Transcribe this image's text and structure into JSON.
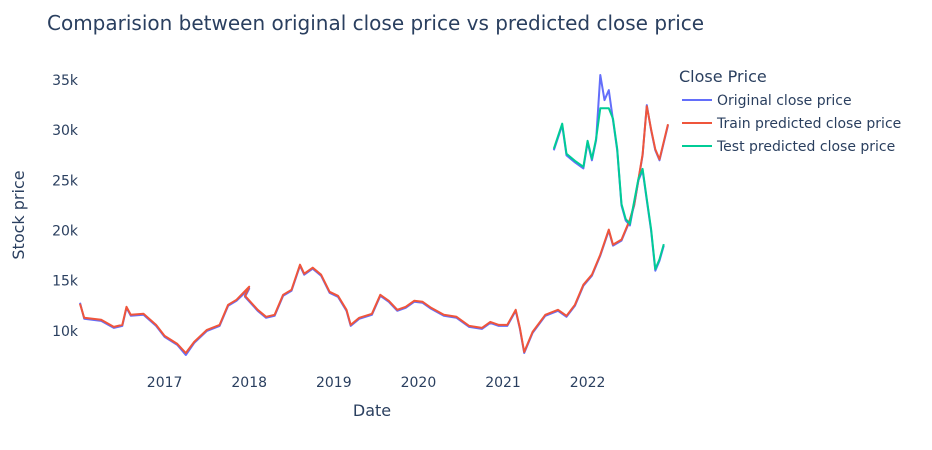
{
  "chart_data": {
    "type": "line",
    "title": "Comparision between original close price vs predicted close price",
    "xlabel": "Date",
    "ylabel": "Stock price",
    "x_range": [
      2016.0,
      2022.95
    ],
    "x_tick_labels": [
      "2017",
      "2018",
      "2019",
      "2020",
      "2021",
      "2022"
    ],
    "ylim": [
      6500,
      37000
    ],
    "y_tick_labels": [
      "10k",
      "15k",
      "20k",
      "25k",
      "30k",
      "35k"
    ],
    "y_tick_values": [
      10000,
      15000,
      20000,
      25000,
      30000,
      35000
    ],
    "grid": false,
    "legend": {
      "title": "Close Price",
      "placement": "top-right"
    },
    "series": [
      {
        "name": "Original close price",
        "color": "#636efa",
        "points": [
          [
            2016.0,
            12800
          ],
          [
            2016.05,
            11200
          ],
          [
            2016.25,
            11000
          ],
          [
            2016.4,
            10300
          ],
          [
            2016.5,
            10500
          ],
          [
            2016.55,
            12300
          ],
          [
            2016.6,
            11500
          ],
          [
            2016.75,
            11600
          ],
          [
            2016.9,
            10500
          ],
          [
            2017.0,
            9400
          ],
          [
            2017.15,
            8600
          ],
          [
            2017.25,
            7600
          ],
          [
            2017.35,
            8800
          ],
          [
            2017.5,
            10000
          ],
          [
            2017.65,
            10500
          ],
          [
            2017.75,
            12500
          ],
          [
            2017.85,
            13000
          ],
          [
            2018.0,
            14200
          ],
          [
            2017.95,
            13400
          ],
          [
            2018.1,
            12000
          ],
          [
            2018.2,
            11300
          ],
          [
            2018.3,
            11500
          ],
          [
            2018.4,
            13500
          ],
          [
            2018.5,
            14000
          ],
          [
            2018.6,
            16500
          ],
          [
            2018.65,
            15600
          ],
          [
            2018.75,
            16200
          ],
          [
            2018.85,
            15500
          ],
          [
            2018.95,
            13800
          ],
          [
            2019.05,
            13400
          ],
          [
            2019.15,
            12000
          ],
          [
            2019.2,
            10500
          ],
          [
            2019.3,
            11200
          ],
          [
            2019.45,
            11600
          ],
          [
            2019.55,
            13500
          ],
          [
            2019.65,
            12900
          ],
          [
            2019.75,
            12000
          ],
          [
            2019.85,
            12300
          ],
          [
            2019.95,
            12900
          ],
          [
            2020.05,
            12800
          ],
          [
            2020.15,
            12200
          ],
          [
            2020.3,
            11500
          ],
          [
            2020.45,
            11300
          ],
          [
            2020.6,
            10400
          ],
          [
            2020.75,
            10200
          ],
          [
            2020.85,
            10800
          ],
          [
            2020.95,
            10500
          ],
          [
            2021.05,
            10500
          ],
          [
            2021.15,
            12000
          ],
          [
            2021.2,
            10200
          ],
          [
            2021.25,
            7800
          ],
          [
            2021.35,
            9800
          ],
          [
            2021.5,
            11500
          ],
          [
            2021.65,
            12000
          ],
          [
            2021.75,
            11400
          ],
          [
            2021.85,
            12500
          ],
          [
            2021.95,
            14500
          ],
          [
            2022.05,
            15500
          ],
          [
            2022.15,
            17500
          ],
          [
            2022.25,
            20000
          ],
          [
            2022.3,
            18500
          ],
          [
            2022.4,
            19000
          ],
          [
            2022.5,
            21000
          ],
          [
            2022.55,
            22500
          ],
          [
            2022.6,
            25000
          ],
          [
            2022.65,
            27500
          ],
          [
            2022.7,
            32500
          ],
          [
            2022.75,
            30000
          ],
          [
            2022.8,
            28000
          ],
          [
            2022.85,
            27000
          ],
          [
            2022.95,
            30500
          ]
        ],
        "note_values": [
          [
            2021.6,
            28000
          ],
          [
            2021.7,
            30500
          ],
          [
            2021.75,
            27500
          ],
          [
            2021.85,
            26800
          ],
          [
            2021.95,
            26200
          ],
          [
            2022.0,
            28800
          ],
          [
            2022.05,
            27000
          ],
          [
            2022.1,
            29000
          ],
          [
            2022.15,
            35500
          ],
          [
            2022.2,
            33000
          ],
          [
            2022.25,
            34000
          ],
          [
            2022.3,
            31000
          ],
          [
            2022.35,
            28000
          ],
          [
            2022.4,
            22500
          ],
          [
            2022.45,
            21000
          ],
          [
            2022.5,
            20500
          ],
          [
            2022.6,
            25000
          ],
          [
            2022.65,
            26000
          ],
          [
            2022.7,
            23000
          ],
          [
            2022.75,
            20000
          ],
          [
            2022.8,
            16000
          ],
          [
            2022.85,
            17000
          ],
          [
            2022.9,
            18500
          ]
        ]
      },
      {
        "name": "Train predicted close price",
        "color": "#ef553b",
        "points": [
          [
            2016.0,
            12700
          ],
          [
            2016.05,
            11300
          ],
          [
            2016.25,
            11100
          ],
          [
            2016.4,
            10400
          ],
          [
            2016.5,
            10600
          ],
          [
            2016.55,
            12400
          ],
          [
            2016.6,
            11600
          ],
          [
            2016.75,
            11700
          ],
          [
            2016.9,
            10600
          ],
          [
            2017.0,
            9500
          ],
          [
            2017.15,
            8700
          ],
          [
            2017.25,
            7800
          ],
          [
            2017.35,
            8900
          ],
          [
            2017.5,
            10100
          ],
          [
            2017.65,
            10600
          ],
          [
            2017.75,
            12600
          ],
          [
            2017.85,
            13100
          ],
          [
            2018.0,
            14400
          ],
          [
            2017.95,
            13500
          ],
          [
            2018.1,
            12100
          ],
          [
            2018.2,
            11400
          ],
          [
            2018.3,
            11600
          ],
          [
            2018.4,
            13600
          ],
          [
            2018.5,
            14100
          ],
          [
            2018.6,
            16600
          ],
          [
            2018.65,
            15700
          ],
          [
            2018.75,
            16300
          ],
          [
            2018.85,
            15600
          ],
          [
            2018.95,
            13900
          ],
          [
            2019.05,
            13500
          ],
          [
            2019.15,
            12100
          ],
          [
            2019.2,
            10600
          ],
          [
            2019.3,
            11300
          ],
          [
            2019.45,
            11700
          ],
          [
            2019.55,
            13600
          ],
          [
            2019.65,
            13000
          ],
          [
            2019.75,
            12100
          ],
          [
            2019.85,
            12400
          ],
          [
            2019.95,
            13000
          ],
          [
            2020.05,
            12900
          ],
          [
            2020.15,
            12300
          ],
          [
            2020.3,
            11600
          ],
          [
            2020.45,
            11400
          ],
          [
            2020.6,
            10500
          ],
          [
            2020.75,
            10300
          ],
          [
            2020.85,
            10900
          ],
          [
            2020.95,
            10600
          ],
          [
            2021.05,
            10600
          ],
          [
            2021.15,
            12100
          ],
          [
            2021.2,
            10300
          ],
          [
            2021.25,
            7900
          ],
          [
            2021.35,
            9900
          ],
          [
            2021.5,
            11600
          ],
          [
            2021.65,
            12100
          ],
          [
            2021.75,
            11500
          ],
          [
            2021.85,
            12600
          ],
          [
            2021.95,
            14600
          ],
          [
            2022.05,
            15600
          ],
          [
            2022.15,
            17600
          ],
          [
            2022.25,
            20100
          ],
          [
            2022.3,
            18600
          ],
          [
            2022.4,
            19100
          ],
          [
            2022.5,
            21100
          ],
          [
            2022.55,
            22600
          ],
          [
            2022.6,
            25100
          ],
          [
            2022.65,
            27600
          ],
          [
            2022.7,
            32400
          ],
          [
            2022.75,
            30100
          ],
          [
            2022.8,
            28100
          ],
          [
            2022.85,
            27100
          ],
          [
            2022.95,
            30600
          ]
        ]
      },
      {
        "name": "Test predicted close price",
        "color": "#00cc96",
        "points": []
      }
    ]
  }
}
